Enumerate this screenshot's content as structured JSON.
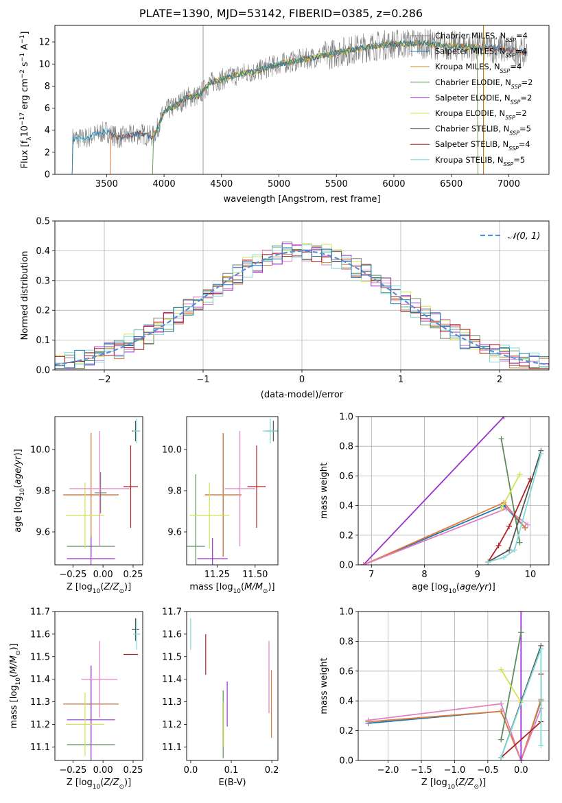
{
  "figure_title": "PLATE=1390, MJD=53142, FIBERID=0385, z=0.286",
  "colors": {
    "Chabrier MILES": "#7f7f7f",
    "Salpeter MILES": "#1f77b4",
    "Kroupa MILES": "#b8860b",
    "Chabrier ELODIE": "#5b8c5a",
    "Salpeter ELODIE": "#9b30d0",
    "Kroupa ELODIE": "#d4e34f",
    "Chabrier STELIB": "#555555",
    "Salpeter STELIB": "#b22222",
    "Kroupa STELIB": "#7fd8d8",
    "orange": "#e07b39",
    "pink": "#e080c0",
    "gauss": "#5b8fd6"
  },
  "legend_entries": [
    {
      "pre": "Chabrier MILES, N",
      "sub": "SSP",
      "post": "=4",
      "color": "#7f7f7f"
    },
    {
      "pre": "Salpeter MILES, N",
      "sub": "SSP",
      "post": "=4",
      "color": "#1f77b4"
    },
    {
      "pre": "Kroupa MILES, N",
      "sub": "SSP",
      "post": "=4",
      "color": "#b8860b"
    },
    {
      "pre": "Chabrier ELODIE, N",
      "sub": "SSP",
      "post": "=2",
      "color": "#5b8c5a"
    },
    {
      "pre": "Salpeter ELODIE, N",
      "sub": "SSP",
      "post": "=2",
      "color": "#9b30d0"
    },
    {
      "pre": "Kroupa ELODIE, N",
      "sub": "SSP",
      "post": "=2",
      "color": "#d4e34f"
    },
    {
      "pre": "Chabrier STELIB, N",
      "sub": "SSP",
      "post": "=5",
      "color": "#555555"
    },
    {
      "pre": "Salpeter STELIB, N",
      "sub": "SSP",
      "post": "=4",
      "color": "#b22222"
    },
    {
      "pre": "Kroupa STELIB, N",
      "sub": "SSP",
      "post": "=5",
      "color": "#7fd8d8"
    }
  ],
  "chart_data": [
    {
      "id": "spectrum",
      "type": "line",
      "xlabel": "wavelength [Angstrom, rest frame]",
      "ylabel": "Flux [fλ10⁻¹⁷ erg cm⁻² s⁻¹ A⁻¹]",
      "xlim": [
        3050,
        7350
      ],
      "ylim": [
        0,
        13.5
      ],
      "xticks": [
        3500,
        4000,
        4500,
        5000,
        5500,
        6000,
        6500,
        7000
      ],
      "yticks": [
        0,
        2,
        4,
        6,
        8,
        10,
        12
      ],
      "grid": false,
      "legend": "top-right",
      "continuum_x": [
        3200,
        3300,
        3400,
        3500,
        3600,
        3700,
        3800,
        3900,
        3950,
        4000,
        4100,
        4200,
        4300,
        4400,
        4500,
        4600,
        4700,
        4800,
        4900,
        5000,
        5200,
        5400,
        5600,
        5800,
        6000,
        6200,
        6400,
        6600,
        6800,
        7000,
        7150
      ],
      "continuum_y": [
        3.3,
        3.2,
        3.6,
        3.9,
        3.3,
        3.5,
        3.7,
        3.4,
        4.3,
        5.7,
        6.2,
        7.0,
        7.1,
        8.3,
        8.6,
        8.9,
        9.2,
        9.3,
        9.7,
        10.0,
        10.4,
        10.8,
        11.2,
        11.6,
        11.8,
        11.9,
        11.7,
        11.6,
        11.5,
        11.3,
        11.0
      ]
    },
    {
      "id": "residuals",
      "type": "histogram",
      "xlabel": "(data-model)/error",
      "ylabel": "Normed distribution",
      "xlim": [
        -2.5,
        2.5
      ],
      "ylim": [
        0,
        0.5
      ],
      "xticks": [
        -2,
        -1,
        0,
        1,
        2
      ],
      "yticks": [
        0.0,
        0.1,
        0.2,
        0.3,
        0.4,
        0.5
      ],
      "grid": true,
      "legend": "top-right",
      "legend_label": "𝒩(0,1)",
      "bins": 50
    },
    {
      "id": "age_vs_Z",
      "type": "errorbar",
      "xlabel": "Z [log10(Z/Z⊙)]",
      "ylabel": "age  [log10(age/yr)]",
      "xlim": [
        -0.4,
        0.33
      ],
      "ylim": [
        9.44,
        10.16
      ],
      "xticks": [
        -0.25,
        0.0,
        0.25
      ],
      "yticks": [
        9.6,
        9.8,
        10.0
      ],
      "points": [
        {
          "s": "Salpeter MILES",
          "x": -0.1,
          "xe": 0.23,
          "y": 9.78,
          "ye": 0.3
        },
        {
          "s": "orange",
          "x": -0.1,
          "xe": 0.23,
          "y": 9.78,
          "ye": 0.3
        },
        {
          "s": "Chabrier MILES",
          "x": -0.02,
          "xe": 0.05,
          "y": 9.79,
          "ye": 0.1
        },
        {
          "s": "Chabrier ELODIE",
          "x": -0.1,
          "xe": 0.2,
          "y": 9.53,
          "ye": 0.05
        },
        {
          "s": "Salpeter ELODIE",
          "x": -0.1,
          "xe": 0.2,
          "y": 9.47,
          "ye": 0.1
        },
        {
          "s": "Kroupa ELODIE",
          "x": -0.15,
          "xe": 0.16,
          "y": 9.68,
          "ye": 0.16
        },
        {
          "s": "pink",
          "x": -0.03,
          "xe": 0.25,
          "y": 9.81,
          "ye": 0.28
        },
        {
          "s": "Salpeter STELIB",
          "x": 0.23,
          "xe": 0.06,
          "y": 9.82,
          "ye": 0.2
        },
        {
          "s": "Chabrier STELIB",
          "x": 0.27,
          "xe": 0.03,
          "y": 10.09,
          "ye": 0.05
        },
        {
          "s": "Kroupa STELIB",
          "x": 0.28,
          "xe": 0.03,
          "y": 10.09,
          "ye": 0.06
        }
      ]
    },
    {
      "id": "age_vs_mass",
      "type": "errorbar",
      "xlabel": "mass [log10(M/M⊙)]",
      "ylabel": "",
      "xlim": [
        11.05,
        11.65
      ],
      "ylim": [
        9.44,
        10.16
      ],
      "xticks": [
        11.25,
        11.5
      ],
      "yticks": [
        9.6,
        9.8,
        10.0
      ],
      "points": [
        {
          "s": "Salpeter MILES",
          "x": 11.29,
          "xe": 0.12,
          "y": 9.78,
          "ye": 0.3
        },
        {
          "s": "orange",
          "x": 11.29,
          "xe": 0.12,
          "y": 9.78,
          "ye": 0.3
        },
        {
          "s": "Chabrier ELODIE",
          "x": 11.11,
          "xe": 0.06,
          "y": 9.53,
          "ye": 0.35
        },
        {
          "s": "Salpeter ELODIE",
          "x": 11.22,
          "xe": 0.1,
          "y": 9.47,
          "ye": 0.1
        },
        {
          "s": "Kroupa ELODIE",
          "x": 11.2,
          "xe": 0.13,
          "y": 9.68,
          "ye": 0.16
        },
        {
          "s": "pink",
          "x": 11.4,
          "xe": 0.1,
          "y": 9.81,
          "ye": 0.28
        },
        {
          "s": "Salpeter STELIB",
          "x": 11.51,
          "xe": 0.06,
          "y": 9.82,
          "ye": 0.2
        },
        {
          "s": "Chabrier STELIB",
          "x": 11.62,
          "xe": 0.05,
          "y": 10.09,
          "ye": 0.05
        },
        {
          "s": "Kroupa STELIB",
          "x": 11.6,
          "xe": 0.05,
          "y": 10.09,
          "ye": 0.06
        }
      ]
    },
    {
      "id": "weight_vs_age",
      "type": "line",
      "xlabel": "age  [log10(age/yr)]",
      "ylabel": "mass weight",
      "xlim": [
        6.75,
        10.35
      ],
      "ylim": [
        0,
        1.0
      ],
      "xticks": [
        7,
        8,
        9,
        10
      ],
      "yticks": [
        0.0,
        0.2,
        0.4,
        0.6,
        0.8,
        1.0
      ],
      "grid": true,
      "series": [
        {
          "s": "Salpeter ELODIE",
          "x": [
            6.85,
            9.5
          ],
          "y": [
            0.0,
            1.0
          ]
        },
        {
          "s": "Salpeter MILES",
          "x": [
            6.85,
            9.5,
            9.9
          ],
          "y": [
            0.0,
            0.4,
            0.25
          ]
        },
        {
          "s": "orange",
          "x": [
            6.85,
            9.5,
            9.9
          ],
          "y": [
            0.0,
            0.42,
            0.25
          ]
        },
        {
          "s": "pink",
          "x": [
            6.85,
            9.55,
            9.95
          ],
          "y": [
            0.0,
            0.38,
            0.27
          ]
        },
        {
          "s": "Chabrier ELODIE",
          "x": [
            9.45,
            9.8
          ],
          "y": [
            0.85,
            0.15
          ]
        },
        {
          "s": "Kroupa ELODIE",
          "x": [
            9.45,
            9.8
          ],
          "y": [
            0.38,
            0.61
          ]
        },
        {
          "s": "Salpeter STELIB",
          "x": [
            9.2,
            9.4,
            9.6,
            10.0
          ],
          "y": [
            0.02,
            0.13,
            0.26,
            0.58
          ]
        },
        {
          "s": "Chabrier STELIB",
          "x": [
            9.2,
            9.6,
            10.2
          ],
          "y": [
            0.02,
            0.1,
            0.77
          ]
        },
        {
          "s": "Kroupa STELIB",
          "x": [
            9.2,
            9.5,
            9.7,
            10.2
          ],
          "y": [
            0.02,
            0.05,
            0.1,
            0.75
          ]
        }
      ]
    },
    {
      "id": "mass_vs_Z",
      "type": "errorbar",
      "xlabel": "Z [log10(Z/Z⊙)]",
      "ylabel": "mass [log10(M/M⊙)]",
      "xlim": [
        -0.4,
        0.33
      ],
      "ylim": [
        11.04,
        11.7
      ],
      "xticks": [
        -0.25,
        0.0,
        0.25
      ],
      "yticks": [
        11.1,
        11.2,
        11.3,
        11.4,
        11.5,
        11.6,
        11.7
      ],
      "points": [
        {
          "s": "Salpeter MILES",
          "x": -0.1,
          "xe": 0.23,
          "y": 11.29,
          "ye": 0.17
        },
        {
          "s": "orange",
          "x": -0.1,
          "xe": 0.23,
          "y": 11.29,
          "ye": 0.17
        },
        {
          "s": "Chabrier ELODIE",
          "x": -0.1,
          "xe": 0.2,
          "y": 11.11,
          "ye": 0.24
        },
        {
          "s": "Salpeter ELODIE",
          "x": -0.1,
          "xe": 0.2,
          "y": 11.22,
          "ye": 0.24
        },
        {
          "s": "Kroupa ELODIE",
          "x": -0.15,
          "xe": 0.16,
          "y": 11.2,
          "ye": 0.14
        },
        {
          "s": "pink",
          "x": -0.03,
          "xe": 0.15,
          "y": 11.4,
          "ye": 0.17
        },
        {
          "s": "Salpeter STELIB",
          "x": 0.23,
          "xe": 0.06,
          "y": 11.51,
          "ye": 0.0
        },
        {
          "s": "Chabrier STELIB",
          "x": 0.27,
          "xe": 0.03,
          "y": 11.62,
          "ye": 0.05
        },
        {
          "s": "Kroupa STELIB",
          "x": 0.28,
          "xe": 0.03,
          "y": 11.6,
          "ye": 0.07
        }
      ]
    },
    {
      "id": "mass_vs_ebv",
      "type": "errorbar",
      "xlabel": "E(B-V)",
      "ylabel": "",
      "xlim": [
        -0.01,
        0.215
      ],
      "ylim": [
        11.04,
        11.7
      ],
      "xticks": [
        0.0,
        0.1,
        0.2
      ],
      "yticks": [
        11.1,
        11.2,
        11.3,
        11.4,
        11.5,
        11.6,
        11.7
      ],
      "points": [
        {
          "s": "Kroupa STELIB",
          "x": 0.0,
          "xe": 0,
          "y": 11.6,
          "ye": 0.07
        },
        {
          "s": "Salpeter STELIB",
          "x": 0.037,
          "xe": 0,
          "y": 11.51,
          "ye": 0.09
        },
        {
          "s": "Chabrier ELODIE",
          "x": 0.08,
          "xe": 0,
          "y": 11.2,
          "ye": 0.15
        },
        {
          "s": "Kroupa ELODIE",
          "x": 0.081,
          "xe": 0,
          "y": 11.2,
          "ye": 0.1
        },
        {
          "s": "Salpeter ELODIE",
          "x": 0.09,
          "xe": 0,
          "y": 11.29,
          "ye": 0.1
        },
        {
          "s": "pink",
          "x": 0.193,
          "xe": 0,
          "y": 11.41,
          "ye": 0.16
        },
        {
          "s": "orange",
          "x": 0.199,
          "xe": 0,
          "y": 11.29,
          "ye": 0.15
        }
      ]
    },
    {
      "id": "weight_vs_Z",
      "type": "line",
      "xlabel": "Z [log10(Z/Z⊙)]",
      "ylabel": "mass weight",
      "xlim": [
        -2.45,
        0.42
      ],
      "ylim": [
        0,
        1.0
      ],
      "xticks": [
        -2.0,
        -1.5,
        -1.0,
        -0.5,
        0.0
      ],
      "yticks": [
        0.0,
        0.2,
        0.4,
        0.6,
        0.8,
        1.0
      ],
      "grid": true,
      "series": [
        {
          "s": "Salpeter MILES",
          "x": [
            -2.3,
            -0.3,
            0.0,
            0.3
          ],
          "y": [
            0.25,
            0.33,
            0.0,
            0.4
          ]
        },
        {
          "s": "orange",
          "x": [
            -2.3,
            -0.3,
            0.0,
            0.3
          ],
          "y": [
            0.26,
            0.33,
            0.0,
            0.41
          ]
        },
        {
          "s": "pink",
          "x": [
            -2.3,
            -0.3,
            0.0,
            0.3
          ],
          "y": [
            0.27,
            0.38,
            0.0,
            0.35
          ]
        },
        {
          "s": "Salpeter ELODIE",
          "x": [
            0.0,
            0.0
          ],
          "y": [
            0.0,
            1.0
          ]
        },
        {
          "s": "Chabrier ELODIE",
          "x": [
            -0.3,
            0.0
          ],
          "y": [
            0.14,
            0.86
          ]
        },
        {
          "s": "Kroupa ELODIE",
          "x": [
            -0.3,
            0.0
          ],
          "y": [
            0.61,
            0.39
          ]
        },
        {
          "s": "Salpeter STELIB",
          "x": [
            -0.3,
            0.3,
            0.3
          ],
          "y": [
            0.02,
            0.26,
            0.58
          ]
        },
        {
          "s": "Chabrier STELIB",
          "x": [
            -0.3,
            0.3
          ],
          "y": [
            0.02,
            0.77
          ]
        },
        {
          "s": "Kroupa STELIB",
          "x": [
            -0.3,
            0.3,
            0.3
          ],
          "y": [
            0.02,
            0.75,
            0.1
          ]
        }
      ]
    }
  ]
}
